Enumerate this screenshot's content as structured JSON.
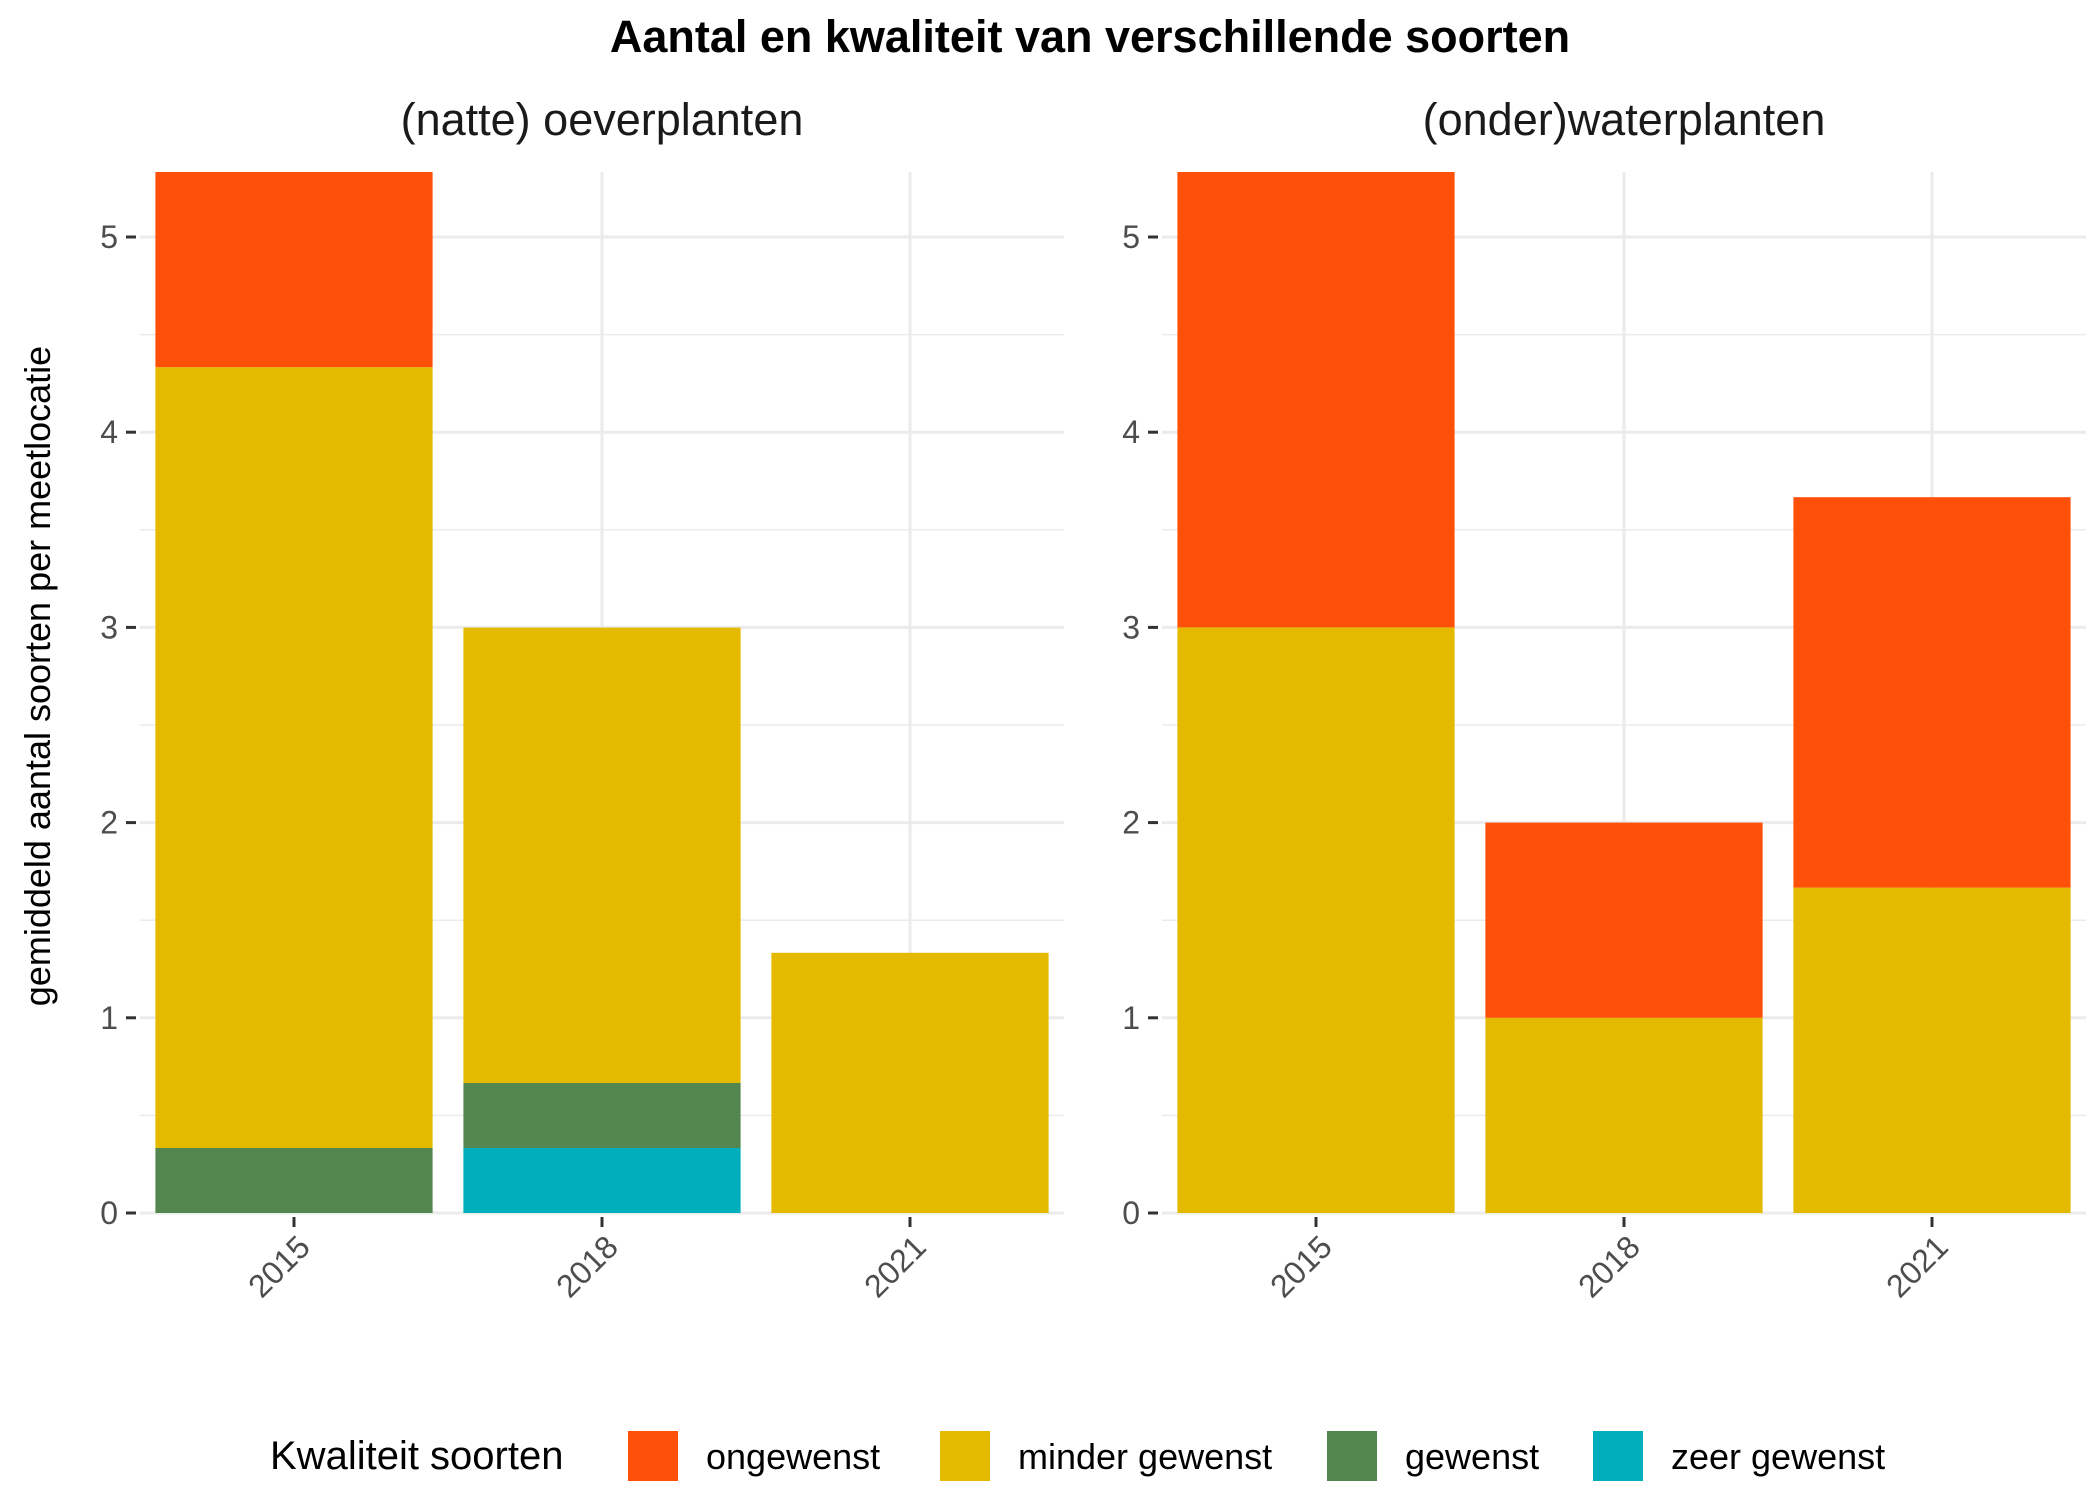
{
  "chart_data": {
    "type": "bar",
    "stacked": true,
    "title": "Aantal en kwaliteit van verschillende soorten",
    "ylabel": "gemiddeld aantal soorten per meetlocatie",
    "xlabel": "",
    "ylim": [
      0,
      5.333
    ],
    "yticks": [
      "0",
      "1",
      "2",
      "3",
      "4",
      "5"
    ],
    "categories": [
      "2015",
      "2018",
      "2021"
    ],
    "legend": {
      "title": "Kwaliteit soorten",
      "position": "bottom",
      "entries": [
        {
          "key": "ongewenst",
          "label": "ongewenst",
          "color": "#FF500A"
        },
        {
          "key": "minder",
          "label": "minder gewenst",
          "color": "#E4BA00"
        },
        {
          "key": "gewenst",
          "label": "gewenst",
          "color": "#53874F"
        },
        {
          "key": "zeer",
          "label": "zeer gewenst",
          "color": "#00AEBC"
        }
      ]
    },
    "grid": true,
    "panels": [
      {
        "title": "(natte) oeverplanten",
        "series": [
          {
            "name": "zeer gewenst",
            "key": "zeer",
            "values": [
              0,
              0.333,
              0
            ]
          },
          {
            "name": "gewenst",
            "key": "gewenst",
            "values": [
              0.333,
              0.333,
              0
            ]
          },
          {
            "name": "minder gewenst",
            "key": "minder",
            "values": [
              4.0,
              2.333,
              1.333
            ]
          },
          {
            "name": "ongewenst",
            "key": "ongewenst",
            "values": [
              1.0,
              0,
              0
            ]
          }
        ]
      },
      {
        "title": "(onder)waterplanten",
        "series": [
          {
            "name": "zeer gewenst",
            "key": "zeer",
            "values": [
              0,
              0,
              0
            ]
          },
          {
            "name": "gewenst",
            "key": "gewenst",
            "values": [
              0,
              0,
              0
            ]
          },
          {
            "name": "minder gewenst",
            "key": "minder",
            "values": [
              3.0,
              1.0,
              1.667
            ]
          },
          {
            "name": "ongewenst",
            "key": "ongewenst",
            "values": [
              2.333,
              1.0,
              2.0
            ]
          }
        ]
      }
    ]
  }
}
